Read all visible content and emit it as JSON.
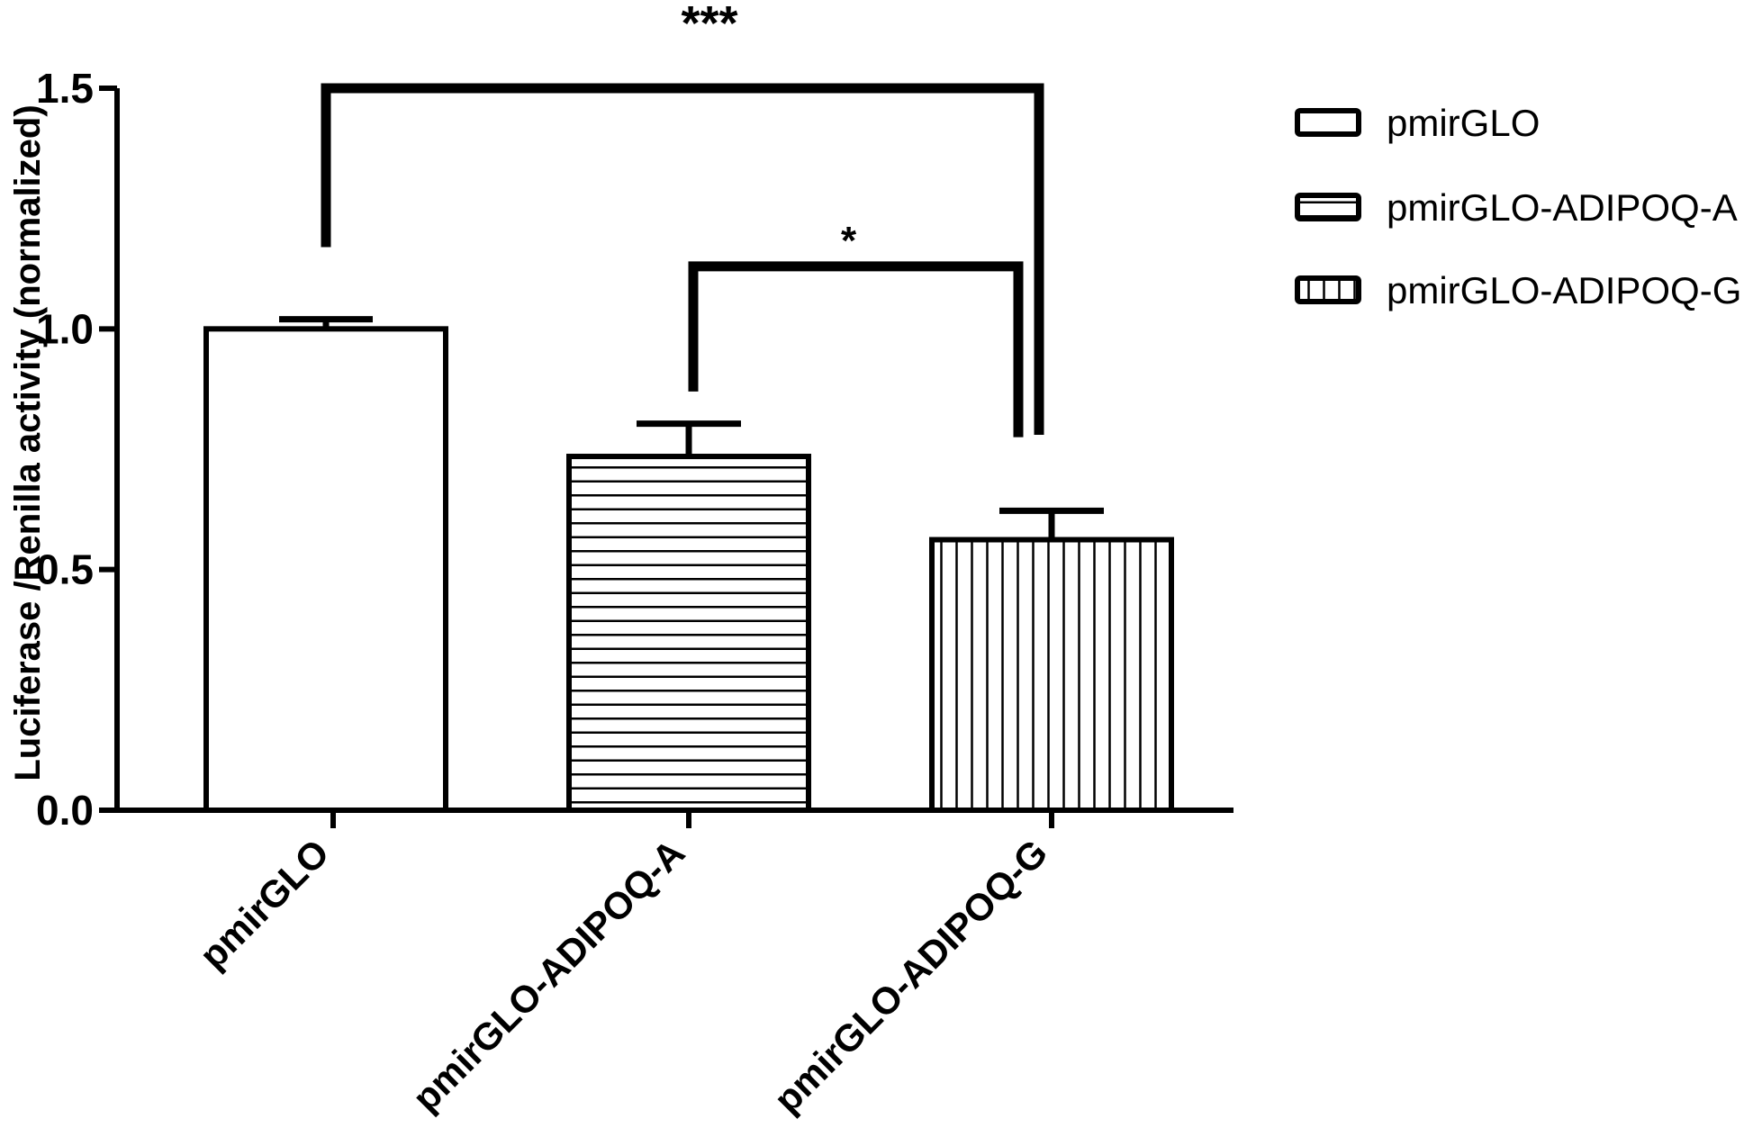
{
  "chart_data": {
    "type": "bar",
    "title": "",
    "xlabel": "",
    "ylabel": "Luciferase /Renilla activity (normalized)",
    "ylim": [
      0,
      1.5
    ],
    "yticks": [
      "0.0",
      "0.5",
      "1.0",
      "1.5"
    ],
    "categories": [
      "pmirGLO",
      "pmirGLO-ADIPOQ-A",
      "pmirGLO-ADIPOQ-G"
    ],
    "values": [
      1.0,
      0.735,
      0.562
    ],
    "errors": [
      0.02,
      0.068,
      0.06
    ],
    "patterns": [
      "none",
      "horizontal",
      "vertical"
    ],
    "legend": {
      "position": "top-right",
      "entries": [
        "pmirGLO",
        "pmirGLO-ADIPOQ-A",
        "pmirGLO-ADIPOQ-G"
      ]
    },
    "significance": [
      {
        "from": 0,
        "to": 2,
        "label": "***",
        "level": 1.5
      },
      {
        "from": 1,
        "to": 2,
        "label": "*",
        "level": 1.13
      }
    ],
    "grid": false,
    "colors": {
      "stroke": "#000000",
      "fill": "#ffffff"
    }
  }
}
